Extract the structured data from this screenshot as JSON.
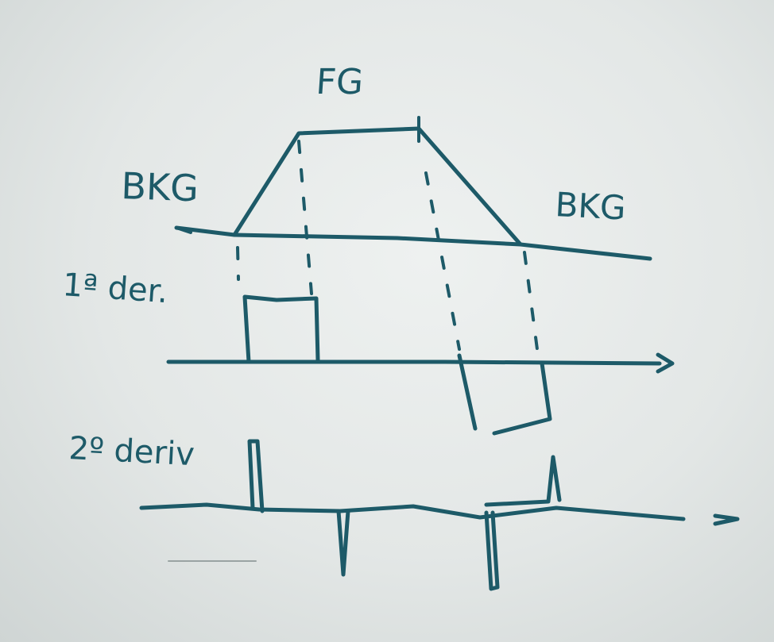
{
  "labels": {
    "fg": "FG",
    "bkg_left": "BKG",
    "bkg_right": "BKG",
    "first_derivative": "1ª der.",
    "second_derivative": "2º deriv"
  },
  "ink_color": "#1d5a68",
  "board_color": "#e6eaea"
}
